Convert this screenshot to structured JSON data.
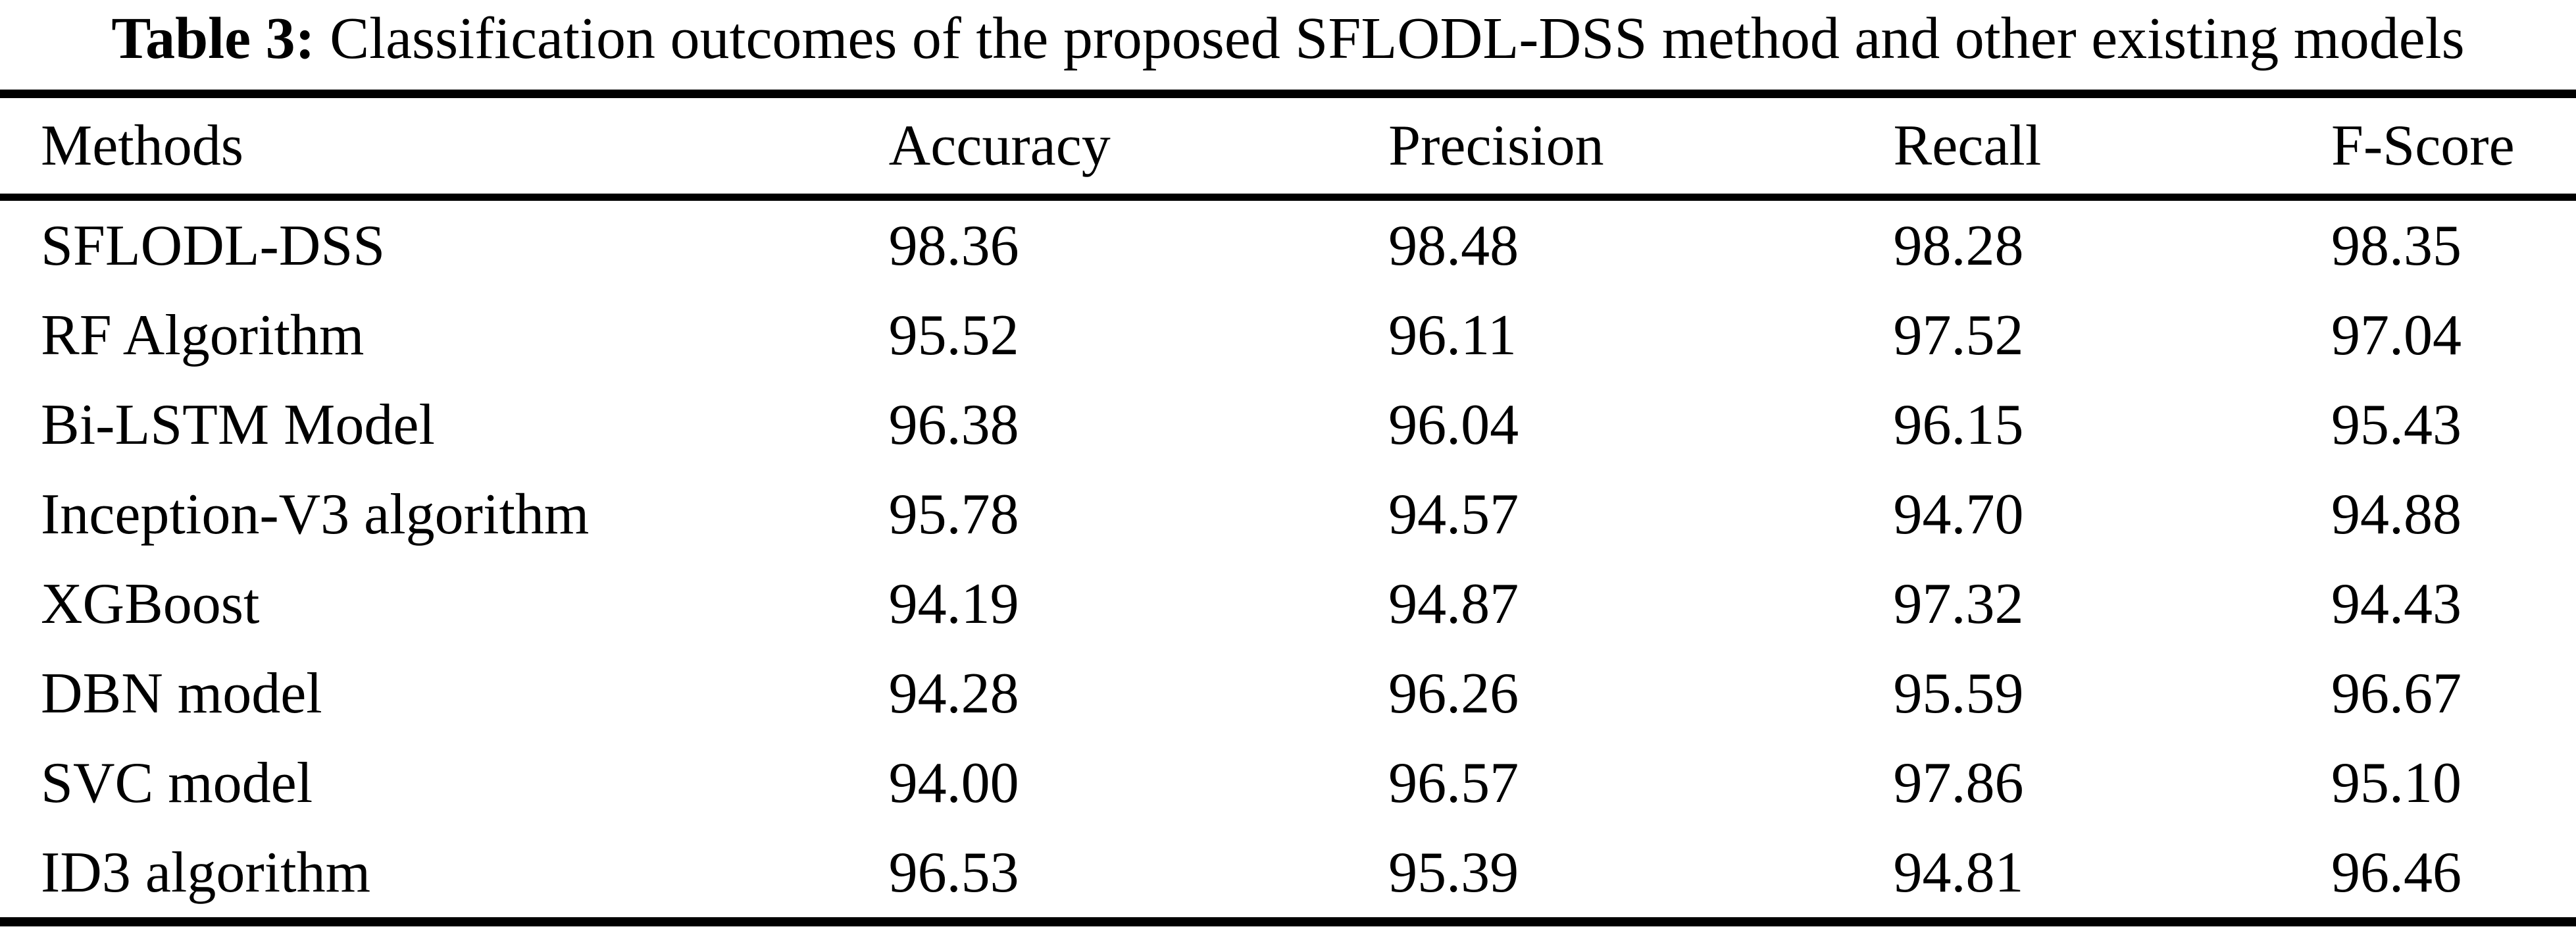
{
  "title": {
    "label": "Table 3:",
    "rest": " Classification outcomes of the proposed SFLODL-DSS method and other existing models"
  },
  "table": {
    "columns": [
      "Methods",
      "Accuracy",
      "Precision",
      "Recall",
      "F-Score"
    ],
    "rows": [
      [
        "SFLODL-DSS",
        "98.36",
        "98.48",
        "98.28",
        "98.35"
      ],
      [
        "RF Algorithm",
        "95.52",
        "96.11",
        "97.52",
        "97.04"
      ],
      [
        "Bi-LSTM Model",
        "96.38",
        "96.04",
        "96.15",
        "95.43"
      ],
      [
        "Inception-V3 algorithm",
        "95.78",
        "94.57",
        "94.70",
        "94.88"
      ],
      [
        "XGBoost",
        "94.19",
        "94.87",
        "97.32",
        "94.43"
      ],
      [
        "DBN model",
        "94.28",
        "96.26",
        "95.59",
        "96.67"
      ],
      [
        "SVC model",
        "94.00",
        "96.57",
        "97.86",
        "95.10"
      ],
      [
        "ID3 algorithm",
        "96.53",
        "95.39",
        "94.81",
        "96.46"
      ]
    ]
  },
  "chart_data": {
    "type": "table",
    "title": "Table 3: Classification outcomes of the proposed SFLODL-DSS method and other existing models",
    "columns": [
      "Methods",
      "Accuracy",
      "Precision",
      "Recall",
      "F-Score"
    ],
    "series": [
      {
        "name": "SFLODL-DSS",
        "values": [
          98.36,
          98.48,
          98.28,
          98.35
        ]
      },
      {
        "name": "RF Algorithm",
        "values": [
          95.52,
          96.11,
          97.52,
          97.04
        ]
      },
      {
        "name": "Bi-LSTM Model",
        "values": [
          96.38,
          96.04,
          96.15,
          95.43
        ]
      },
      {
        "name": "Inception-V3 algorithm",
        "values": [
          95.78,
          94.57,
          94.7,
          94.88
        ]
      },
      {
        "name": "XGBoost",
        "values": [
          94.19,
          94.87,
          97.32,
          94.43
        ]
      },
      {
        "name": "DBN model",
        "values": [
          94.28,
          96.26,
          95.59,
          96.67
        ]
      },
      {
        "name": "SVC model",
        "values": [
          94.0,
          96.57,
          97.86,
          95.1
        ]
      },
      {
        "name": "ID3 algorithm",
        "values": [
          96.53,
          95.39,
          94.81,
          96.46
        ]
      }
    ],
    "colors": {
      "text": "#000000",
      "background": "#ffffff",
      "rule": "#000000"
    }
  }
}
